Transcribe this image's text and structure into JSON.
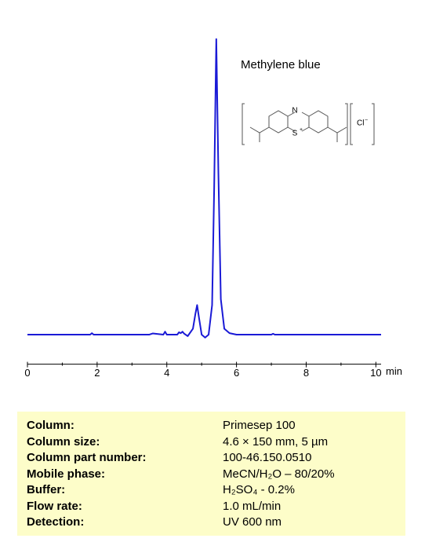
{
  "chart_data": {
    "type": "line",
    "annotation": "Methylene blue",
    "structure": {
      "ring_n": "N",
      "ring_s": "S",
      "s_charge": "+",
      "anion": "Cl",
      "anion_charge": "−"
    },
    "x_label": "min",
    "x": [
      0,
      1.8,
      1.85,
      1.9,
      2,
      3,
      3.5,
      3.6,
      3.9,
      3.95,
      4.0,
      4.3,
      4.35,
      4.4,
      4.45,
      4.5,
      4.6,
      4.75,
      4.82,
      4.87,
      4.92,
      5.0,
      5.1,
      5.2,
      5.3,
      5.36,
      5.42,
      5.48,
      5.55,
      5.65,
      5.8,
      6.0,
      6.5,
      7.0,
      7.05,
      7.1,
      8,
      9,
      10.15
    ],
    "series": [
      {
        "color": "#1a1ad6",
        "values": [
          0,
          0,
          0.5,
          0,
          0,
          0,
          0,
          0.4,
          0,
          1,
          0,
          0,
          0.8,
          0.5,
          1,
          0.3,
          -0.5,
          2,
          7,
          10,
          6,
          0,
          -1,
          0,
          10,
          50,
          100,
          55,
          12,
          2,
          0.5,
          0,
          0,
          0,
          0.3,
          0,
          0,
          0,
          0
        ]
      }
    ],
    "xlim": [
      0,
      10.15
    ],
    "ylim": [
      -10,
      105
    ],
    "xticks": [
      0,
      2,
      4,
      6,
      8,
      10
    ],
    "xminorticks": [
      1,
      3,
      5,
      7,
      9
    ]
  },
  "table": {
    "rows": [
      [
        "Column:",
        "Primesep  100"
      ],
      [
        "Column size:",
        "4.6 × 150 mm, 5 µm"
      ],
      [
        "Column part number:",
        "100-46.150.0510"
      ],
      [
        "Mobile phase:",
        "MeCN/H₂O – 80/20%"
      ],
      [
        "Buffer:",
        "H₂SO₄  - 0.2%"
      ],
      [
        "Flow rate:",
        "1.0 mL/min"
      ],
      [
        "Detection:",
        "UV 600 nm"
      ]
    ]
  }
}
